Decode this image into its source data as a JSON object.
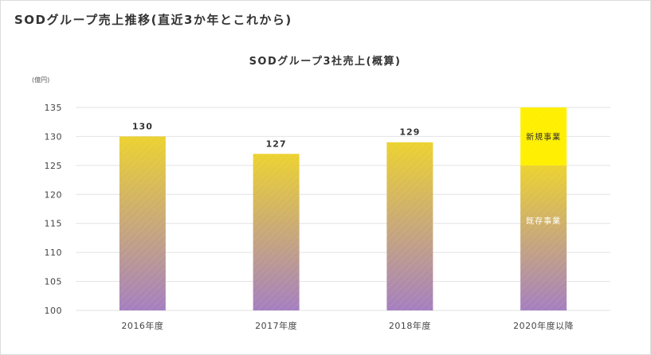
{
  "page_title": "SODグループ売上推移(直近3か年とこれから)",
  "colors": {
    "bar_top": "#ecd230",
    "bar_bottom": "#a57fc0",
    "new_business": "#ffef00",
    "gridline": "#e2e2e2",
    "text": "#333333"
  },
  "chart_data": {
    "type": "bar",
    "title": "SODグループ3社売上(概算)",
    "unit_label": "(億円)",
    "xlabel": "",
    "ylabel": "(億円)",
    "ylim": [
      100,
      135
    ],
    "yticks": [
      100,
      105,
      110,
      115,
      120,
      125,
      130,
      135
    ],
    "grid": true,
    "categories": [
      "2016年度",
      "2017年度",
      "2018年度",
      "2020年度以降"
    ],
    "values": [
      130,
      127,
      129,
      135
    ],
    "value_labels": [
      "130",
      "127",
      "129",
      ""
    ],
    "series": [
      {
        "name": "既存事業",
        "values": [
          130,
          127,
          129,
          125
        ]
      },
      {
        "name": "新規事業",
        "values": [
          0,
          0,
          0,
          10
        ]
      }
    ],
    "segment_labels": {
      "existing": "既存事業",
      "new": "新規事業"
    }
  }
}
